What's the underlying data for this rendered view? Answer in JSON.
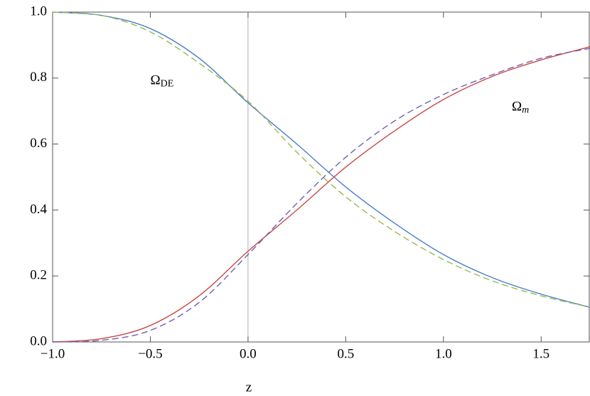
{
  "chart_data": {
    "type": "line",
    "x_label": "z",
    "x": [
      -1.0,
      -0.75,
      -0.5,
      -0.25,
      0.0,
      0.25,
      0.5,
      0.75,
      1.0,
      1.25,
      1.5,
      1.75
    ],
    "series": [
      {
        "color": "#4a7fc8",
        "dash": false,
        "values": [
          1.0,
          0.99,
          0.95,
          0.86,
          0.725,
          0.6,
          0.47,
          0.36,
          0.265,
          0.195,
          0.145,
          0.105
        ]
      },
      {
        "color": "#9bb850",
        "dash": true,
        "values": [
          1.0,
          0.99,
          0.94,
          0.845,
          0.73,
          0.575,
          0.44,
          0.335,
          0.25,
          0.185,
          0.14,
          0.105
        ]
      },
      {
        "color": "#c84a45",
        "dash": false,
        "values": [
          0.0,
          0.01,
          0.05,
          0.14,
          0.275,
          0.4,
          0.53,
          0.64,
          0.735,
          0.805,
          0.855,
          0.895
        ]
      },
      {
        "color": "#7060b0",
        "dash": true,
        "values": [
          0.0,
          0.005,
          0.035,
          0.12,
          0.265,
          0.42,
          0.56,
          0.67,
          0.75,
          0.81,
          0.86,
          0.89
        ]
      }
    ],
    "annotations": [
      {
        "base": "Ω",
        "sub": "DE",
        "x": -0.5,
        "y": 0.79
      },
      {
        "base": "Ω",
        "sub": "m",
        "x": 1.35,
        "y": 0.71
      }
    ],
    "xlim": [
      -1.0,
      1.75
    ],
    "ylim": [
      0.0,
      1.0
    ],
    "xticks": [
      {
        "value": -1.0,
        "label": "−1.0"
      },
      {
        "value": -0.5,
        "label": "−0.5"
      },
      {
        "value": 0.0,
        "label": "0.0"
      },
      {
        "value": 0.5,
        "label": "0.5"
      },
      {
        "value": 1.0,
        "label": "1.0"
      },
      {
        "value": 1.5,
        "label": "1.5"
      }
    ],
    "yticks": [
      {
        "value": 0.0,
        "label": "0.0"
      },
      {
        "value": 0.2,
        "label": "0.2"
      },
      {
        "value": 0.4,
        "label": "0.4"
      },
      {
        "value": 0.6,
        "label": "0.6"
      },
      {
        "value": 0.8,
        "label": "0.8"
      },
      {
        "value": 1.0,
        "label": "1.0"
      }
    ]
  }
}
